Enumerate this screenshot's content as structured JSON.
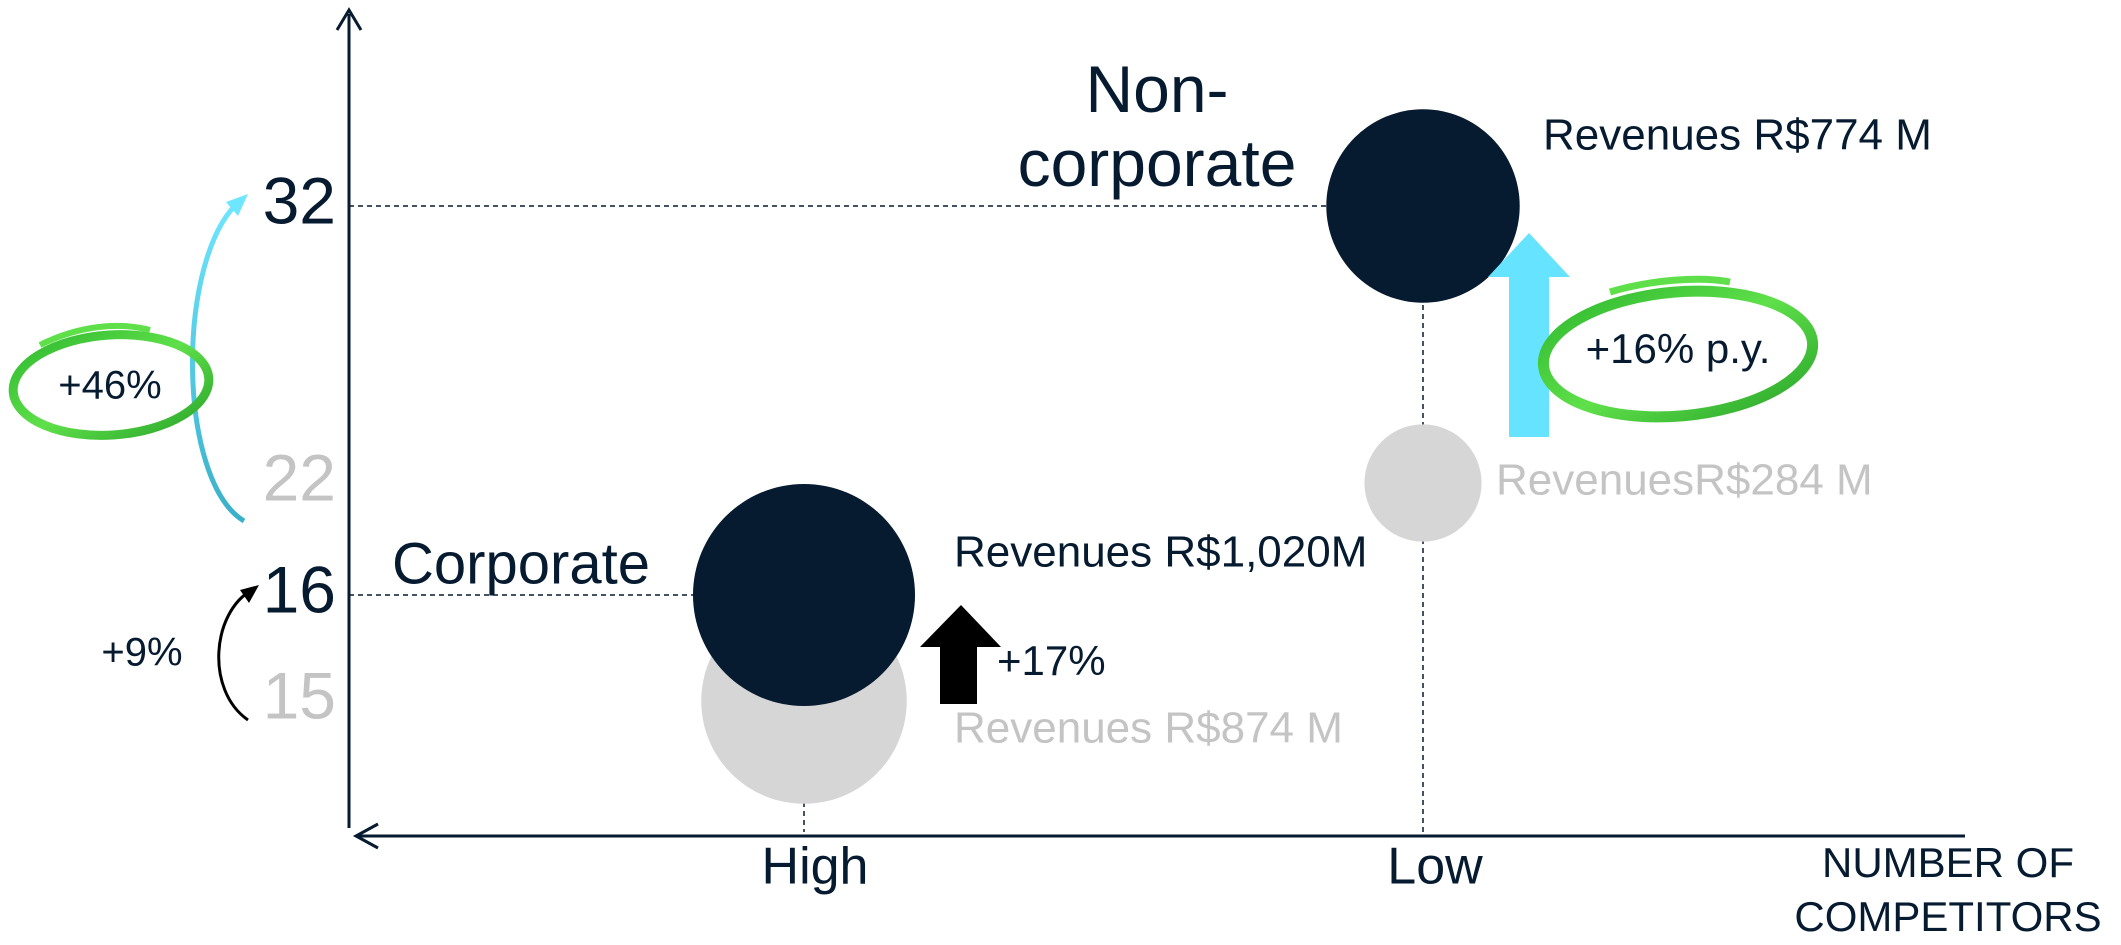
{
  "chart_data": {
    "type": "bubble",
    "x_label": "NUMBER OF COMPETITORS",
    "categories": [
      "High",
      "Low"
    ],
    "groups": [
      "Corporate",
      "Non-corporate"
    ],
    "yticks": [
      15,
      16,
      22,
      32
    ],
    "series": [
      {
        "color": "#061a30",
        "label_color": "#061a30",
        "y": [
          16,
          32
        ],
        "size": [
          1020,
          774
        ],
        "value_labels": [
          "Revenues R$1,020M",
          "Revenues R$774 M"
        ]
      },
      {
        "color": "#d6d6d6",
        "label_color": "#c4c4c4",
        "y": [
          15,
          22
        ],
        "size": [
          874,
          284
        ],
        "value_labels": [
          "Revenues R$874 M",
          "RevenuesR$284 M"
        ]
      }
    ],
    "annotations": [
      "+46%",
      "+9%",
      "+17%",
      "+16% p.y."
    ]
  }
}
